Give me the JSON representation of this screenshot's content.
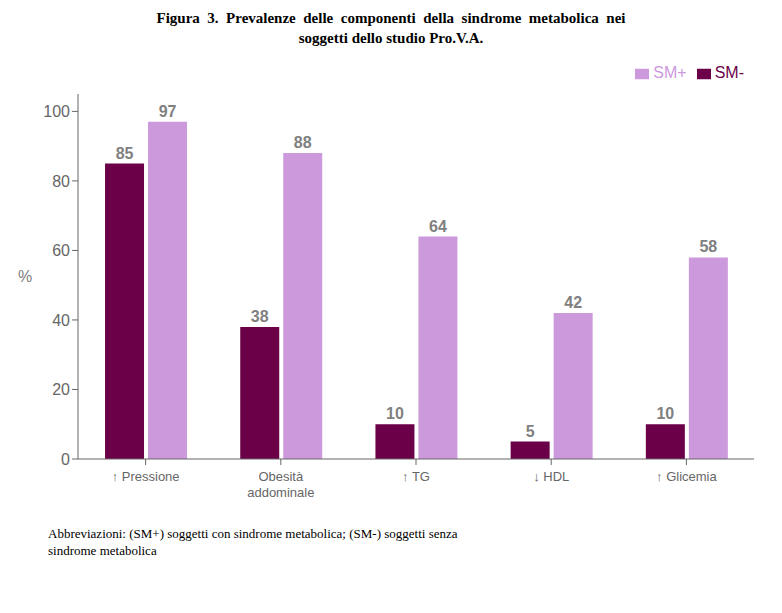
{
  "chart_data": {
    "type": "bar",
    "title": "Figura  3.  Prevalenze  delle  componenti  della  sindrome  metabolica  nei\nsoggetti dello studio Pro.V.A.",
    "categories": [
      "↑ Pressione",
      "Obesità\naddominale",
      "↑ TG",
      "↓ HDL",
      "↑ Glicemia"
    ],
    "series": [
      {
        "name": "SM-",
        "color": "#6B0048",
        "values": [
          85,
          38,
          10,
          5,
          10
        ]
      },
      {
        "name": "SM+",
        "color": "#CC99DD",
        "values": [
          97,
          88,
          64,
          42,
          58
        ]
      }
    ],
    "y_label": "%",
    "ylim": [
      0,
      105
    ],
    "yticks": [
      0,
      20,
      40,
      60,
      80,
      100
    ],
    "grid": false,
    "legend": "upper right",
    "data_labels": true,
    "annotations": [
      "Abbreviazioni: (SM+) soggetti con sindrome metabolica; (SM-) soggetti senza\nsindrome metabolica"
    ]
  }
}
